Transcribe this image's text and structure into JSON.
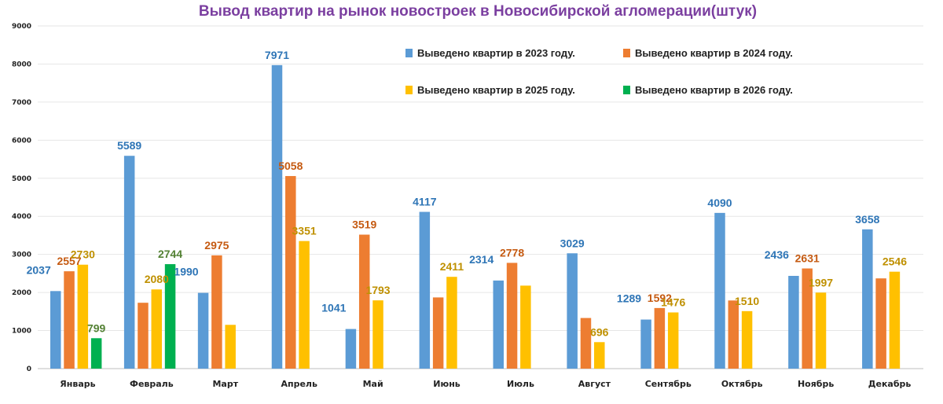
{
  "chart_data": {
    "type": "bar",
    "title": "Вывод квартир на рынок новостроек в Новосибирской агломерации(штук)",
    "categories": [
      "Январь",
      "Февраль",
      "Март",
      "Апрель",
      "Май",
      "Июнь",
      "Июль",
      "Август",
      "Сентябрь",
      "Октябрь",
      "Ноябрь",
      "Декабрь"
    ],
    "series": [
      {
        "name": "Выведено квартир в  2023 году.",
        "color": "#5b9bd5",
        "label_color": "#2e75b6",
        "values": [
          2037,
          5589,
          1990,
          7971,
          1041,
          4117,
          2314,
          3029,
          1289,
          4090,
          2436,
          3658
        ],
        "labels": [
          "2037",
          "5589",
          "1990",
          "7971",
          "1041",
          "4117",
          "2314",
          "3029",
          "1289",
          "4090",
          "2436",
          "3658"
        ]
      },
      {
        "name": "Выведено квартир  в 2024 году.",
        "color": "#ed7d31",
        "label_color": "#c55a11",
        "values": [
          2557,
          1730,
          2975,
          5058,
          3519,
          1870,
          2778,
          1330,
          1592,
          1790,
          2631,
          2370
        ],
        "labels": [
          "2557",
          "",
          "2975",
          "5058",
          "3519",
          "",
          "2778",
          "",
          "1592",
          "",
          "2631",
          ""
        ]
      },
      {
        "name": "Выведено квартир  в 2025 году.",
        "color": "#ffc000",
        "label_color": "#bf9000",
        "values": [
          2730,
          2080,
          1150,
          3351,
          1793,
          2411,
          2180,
          696,
          1476,
          1510,
          1997,
          2546
        ],
        "labels": [
          "2730",
          "2080",
          "",
          "3351",
          "1793",
          "2411",
          "",
          "696",
          "1476",
          "1510",
          "1997",
          "2546"
        ]
      },
      {
        "name": "Выведено квартир  в 2026 году.",
        "color": "#00b050",
        "label_color": "#548235",
        "values": [
          799,
          2744,
          null,
          null,
          null,
          null,
          null,
          null,
          null,
          null,
          null,
          null
        ],
        "labels": [
          "799",
          "2744",
          "",
          "",
          "",
          "",
          "",
          "",
          "",
          "",
          "",
          ""
        ]
      }
    ],
    "yticks": [
      0,
      1000,
      2000,
      3000,
      4000,
      5000,
      6000,
      7000,
      8000,
      9000
    ],
    "ylim": [
      0,
      9000
    ],
    "grid": true,
    "legend_position": "top-right"
  }
}
